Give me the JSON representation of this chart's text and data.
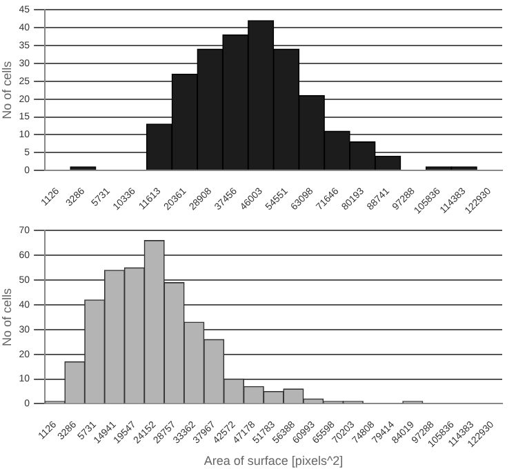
{
  "chart_data": [
    {
      "type": "bar",
      "ylabel": "No of cells",
      "categories": [
        "1126",
        "3286",
        "5731",
        "10336",
        "11613",
        "20361",
        "28908",
        "37456",
        "46003",
        "54551",
        "63098",
        "71646",
        "80193",
        "88741",
        "97288",
        "105836",
        "114383",
        "122930"
      ],
      "values": [
        0,
        1,
        0,
        0,
        13,
        27,
        34,
        38,
        42,
        34,
        21,
        11,
        8,
        4,
        0,
        1,
        1,
        0
      ],
      "color": "#1c1c1c",
      "ylim": [
        0,
        45
      ],
      "yticks": [
        0,
        5,
        10,
        15,
        20,
        25,
        30,
        35,
        40,
        45
      ],
      "grid": "y"
    },
    {
      "type": "bar",
      "ylabel": "No of cells",
      "xlabel": "Area of surface [pixels^2]",
      "categories": [
        "1126",
        "3286",
        "5731",
        "14941",
        "19547",
        "24152",
        "28757",
        "33362",
        "37967",
        "42572",
        "47178",
        "51783",
        "56388",
        "60993",
        "65598",
        "70203",
        "74808",
        "79414",
        "84019",
        "97288",
        "105836",
        "114383",
        "122930"
      ],
      "values": [
        1,
        17,
        42,
        54,
        55,
        66,
        49,
        33,
        26,
        10,
        7,
        5,
        6,
        2,
        1,
        1,
        0,
        0,
        1,
        0,
        0,
        0,
        0
      ],
      "color": "#b4b4b4",
      "ylim": [
        0,
        70
      ],
      "yticks": [
        0,
        10,
        20,
        30,
        40,
        50,
        60,
        70
      ],
      "grid": "y"
    }
  ]
}
